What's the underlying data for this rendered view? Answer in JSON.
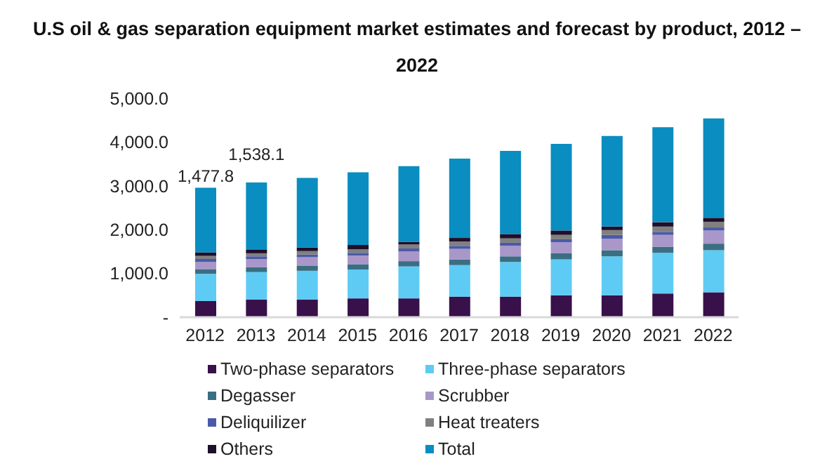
{
  "chart_data": {
    "type": "bar",
    "title": "U.S oil & gas separation equipment market estimates and forecast by product, 2012 – 2022",
    "categories": [
      "2012",
      "2013",
      "2014",
      "2015",
      "2016",
      "2017",
      "2018",
      "2019",
      "2020",
      "2021",
      "2022"
    ],
    "stacked": true,
    "series": [
      {
        "name": "Two-phase separators",
        "color": "#38104a",
        "values": [
          370,
          400,
          400,
          430,
          430,
          470,
          470,
          500,
          500,
          540,
          570
        ]
      },
      {
        "name": "Three-phase separators",
        "color": "#5ecbf5",
        "values": [
          620,
          630,
          660,
          660,
          730,
          720,
          790,
          820,
          890,
          930,
          960
        ]
      },
      {
        "name": "Degasser",
        "color": "#3a6e82",
        "values": [
          100,
          110,
          110,
          120,
          120,
          130,
          130,
          140,
          140,
          140,
          150
        ]
      },
      {
        "name": "Scrubber",
        "color": "#a897c8",
        "values": [
          170,
          190,
          200,
          200,
          220,
          240,
          240,
          250,
          260,
          270,
          300
        ]
      },
      {
        "name": "Deliquilizer",
        "color": "#4b5aa8",
        "values": [
          70,
          60,
          60,
          60,
          70,
          70,
          70,
          70,
          90,
          70,
          70
        ]
      },
      {
        "name": "Heat treaters",
        "color": "#808080",
        "values": [
          70,
          70,
          80,
          80,
          90,
          100,
          100,
          100,
          110,
          120,
          130
        ]
      },
      {
        "name": "Others",
        "color": "#1f0f2a",
        "values": [
          80,
          80,
          80,
          100,
          60,
          80,
          100,
          100,
          80,
          100,
          90
        ]
      },
      {
        "name": "Total",
        "color": "#0a8dc0",
        "values": [
          1477.8,
          1538.1,
          1590,
          1660,
          1730,
          1810,
          1900,
          1980,
          2070,
          2170,
          2270
        ],
        "value_labels": [
          "1,477.8",
          "1,538.1",
          null,
          null,
          null,
          null,
          null,
          null,
          null,
          null,
          null
        ]
      }
    ],
    "ylim": [
      0,
      5000
    ],
    "yticks": [
      {
        "value": 0,
        "label": "-"
      },
      {
        "value": 1000,
        "label": "1,000.0"
      },
      {
        "value": 2000,
        "label": "2,000.0"
      },
      {
        "value": 3000,
        "label": "3,000.0"
      },
      {
        "value": 4000,
        "label": "4,000.0"
      },
      {
        "value": 5000,
        "label": "5,000.0"
      }
    ],
    "grid": false,
    "legend": "bottom"
  }
}
